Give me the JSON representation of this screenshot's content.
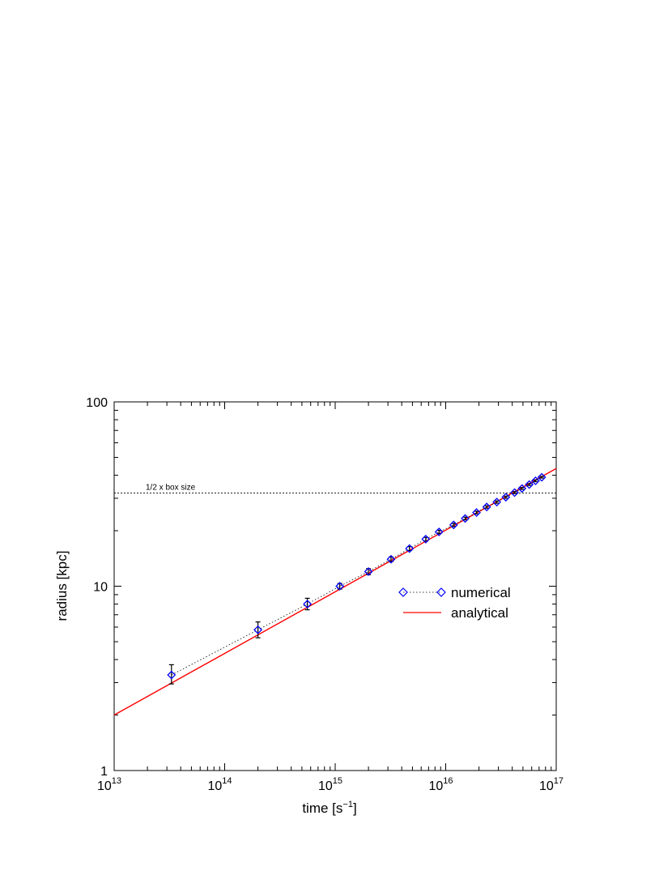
{
  "chart_data": {
    "type": "scatter",
    "xlabel_base": "time [s",
    "xlabel_exp": "−1",
    "xlabel_close": "]",
    "ylabel": "radius [kpc]",
    "x_scale": "log",
    "y_scale": "log",
    "xlim": [
      10000000000000.0,
      1e+17
    ],
    "ylim": [
      1,
      100
    ],
    "x_ticks": [
      {
        "base": "10",
        "exp": "13",
        "value": 10000000000000.0
      },
      {
        "base": "10",
        "exp": "14",
        "value": 100000000000000.0
      },
      {
        "base": "10",
        "exp": "15",
        "value": 1000000000000000.0
      },
      {
        "base": "10",
        "exp": "16",
        "value": 1e+16
      },
      {
        "base": "10",
        "exp": "17",
        "value": 1e+17
      }
    ],
    "y_ticks": [
      {
        "label": "1",
        "value": 1
      },
      {
        "label": "10",
        "value": 10
      },
      {
        "label": "100",
        "value": 100
      }
    ],
    "grid": false,
    "legend_position": "right",
    "reference_line": {
      "y": 32,
      "label": "1/2 x box size"
    },
    "series": [
      {
        "name": "numerical",
        "marker": "diamond",
        "color": "#0000ff",
        "line_style": "dotted",
        "x": [
          33000000000000.0,
          200000000000000.0,
          560000000000000.0,
          1100000000000000.0,
          2000000000000000.0,
          3200000000000000.0,
          4700000000000000.0,
          6600000000000000.0,
          8700000000000000.0,
          1.18e+16,
          1.5e+16,
          1.9e+16,
          2.35e+16,
          2.9e+16,
          3.5e+16,
          4.2e+16,
          4.9e+16,
          5.7e+16,
          6.5e+16,
          7.4e+16
        ],
        "y": [
          3.3,
          5.8,
          8.0,
          10.0,
          12.0,
          14.0,
          16.0,
          18.0,
          19.7,
          21.5,
          23.3,
          25.1,
          26.9,
          28.6,
          30.4,
          32.2,
          33.9,
          35.6,
          37.3,
          39.0
        ],
        "yerr_low": [
          2.95,
          5.25,
          7.45,
          9.65,
          11.55,
          13.6,
          15.6,
          17.6,
          19.3,
          21.1,
          22.9,
          24.7,
          26.5,
          28.2,
          30.0,
          31.8,
          33.5,
          35.2,
          36.9,
          38.6
        ],
        "yerr_high": [
          3.75,
          6.4,
          8.6,
          10.35,
          12.45,
          14.4,
          16.4,
          18.4,
          20.1,
          21.9,
          23.7,
          25.5,
          27.3,
          29.0,
          30.8,
          32.6,
          34.3,
          36.0,
          37.7,
          39.4
        ]
      },
      {
        "name": "analytical",
        "line_style": "solid",
        "color": "#ff0000",
        "x": [
          10000000000000.0,
          1e+17
        ],
        "y": [
          2.0,
          43.5
        ]
      }
    ]
  }
}
